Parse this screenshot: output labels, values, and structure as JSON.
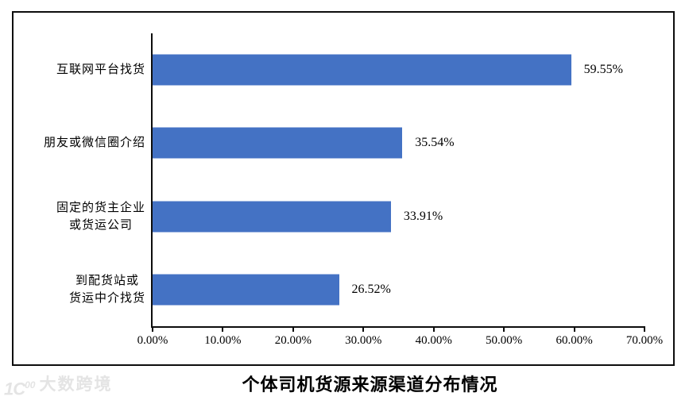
{
  "chart_data": {
    "type": "bar",
    "orientation": "horizontal",
    "title": "个体司机货源来源渠道分布情况",
    "categories": [
      [
        "互联网平台找货"
      ],
      [
        "朋友或微信圈介绍"
      ],
      [
        "固定的货主企业",
        "或货运公司"
      ],
      [
        "到配货站或",
        "货运中介找货"
      ]
    ],
    "values": [
      59.55,
      35.54,
      33.91,
      26.52
    ],
    "value_labels": [
      "59.55%",
      "35.54%",
      "33.91%",
      "26.52%"
    ],
    "x_ticks": [
      "0.00%",
      "10.00%",
      "20.00%",
      "30.00%",
      "40.00%",
      "50.00%",
      "60.00%",
      "70.00%"
    ],
    "xlim": [
      0,
      70
    ],
    "bar_color": "#4472c4",
    "axis_color": "#0d0d0d",
    "grid": false,
    "legend": false
  },
  "watermark": {
    "logo_base": "1C",
    "logo_sup": "00",
    "text": "大数跨境"
  }
}
